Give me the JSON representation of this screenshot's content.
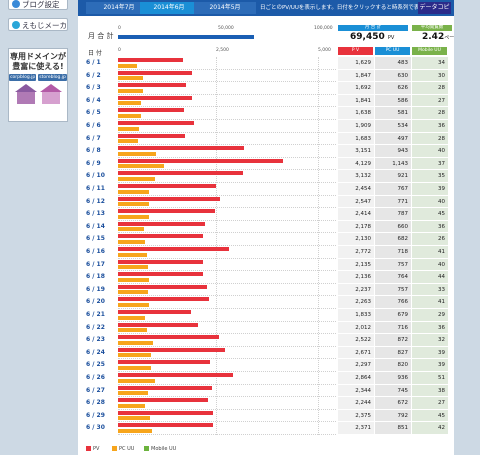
{
  "sidebar": {
    "blog_settings": "ブログ設定",
    "emoji_maker": "えもじメーカー",
    "ad": {
      "line1": "専用ドメインが",
      "line2": "豊富に使える!",
      "domains": [
        "corpblog.jp",
        "storeblog.jp"
      ]
    }
  },
  "tabs": [
    {
      "label": "2014年7月"
    },
    {
      "label": "2014年6月",
      "active": true
    },
    {
      "label": "2014年5月"
    }
  ],
  "tabs_info": "日ごとのPV/UUを表示します。日付をクリックすると時系列で表示します。",
  "copy_button": "データコピー",
  "month_total": {
    "label": "月 合 計",
    "ticks": [
      "0",
      "50,000",
      "100,000"
    ],
    "value_fraction": 0.6945
  },
  "totals": {
    "pv_header": "月 合 計",
    "pv_value": "69,450",
    "pv_unit": "PV",
    "avg_header": "平均閲覧数",
    "avg_value": "2.42",
    "avg_unit": "ページ"
  },
  "columns": {
    "date_label": "日 付",
    "ticks": [
      "0",
      "2,500",
      "5,000"
    ],
    "pv": "P V",
    "pc": "PC UU",
    "mobile": "Mobile UU"
  },
  "colors": {
    "pv": "#e8323c",
    "pc": "#f7a51c",
    "mobile": "#6cb33e",
    "header": "#1c5aa8"
  },
  "legend": {
    "pv": "PV",
    "pc": "PC UU",
    "mobile": "Mobile UU"
  },
  "chart_data": {
    "type": "bar",
    "xlim": [
      0,
      5000
    ],
    "categories": [
      "6 / 1",
      "6 / 2",
      "6 / 3",
      "6 / 4",
      "6 / 5",
      "6 / 6",
      "6 / 7",
      "6 / 8",
      "6 / 9",
      "6 / 10",
      "6 / 11",
      "6 / 12",
      "6 / 13",
      "6 / 14",
      "6 / 15",
      "6 / 16",
      "6 / 17",
      "6 / 18",
      "6 / 19",
      "6 / 20",
      "6 / 21",
      "6 / 22",
      "6 / 23",
      "6 / 24",
      "6 / 25",
      "6 / 26",
      "6 / 27",
      "6 / 28",
      "6 / 29",
      "6 / 30"
    ],
    "series": [
      {
        "name": "PV",
        "values": [
          1629,
          1847,
          1692,
          1841,
          1638,
          1909,
          1683,
          3151,
          4129,
          3132,
          2454,
          2547,
          2414,
          2178,
          2130,
          2772,
          2135,
          2136,
          2237,
          2263,
          1833,
          2012,
          2522,
          2671,
          2297,
          2864,
          2344,
          2244,
          2375,
          2371
        ]
      },
      {
        "name": "PC UU",
        "values": [
          483,
          630,
          626,
          586,
          581,
          534,
          497,
          943,
          1143,
          921,
          767,
          771,
          787,
          660,
          682,
          718,
          757,
          764,
          757,
          766,
          679,
          716,
          872,
          827,
          820,
          936,
          745,
          672,
          792,
          851
        ]
      },
      {
        "name": "Mobile UU",
        "values": [
          34,
          30,
          28,
          27,
          28,
          36,
          28,
          40,
          37,
          35,
          39,
          40,
          45,
          36,
          26,
          41,
          40,
          44,
          33,
          41,
          29,
          36,
          32,
          39,
          39,
          51,
          38,
          27,
          45,
          42
        ]
      }
    ],
    "display_values": {
      "pv": [
        "1,629",
        "1,847",
        "1,692",
        "1,841",
        "1,638",
        "1,909",
        "1,683",
        "3,151",
        "4,129",
        "3,132",
        "2,454",
        "2,547",
        "2,414",
        "2,178",
        "2,130",
        "2,772",
        "2,135",
        "2,136",
        "2,237",
        "2,263",
        "1,833",
        "2,012",
        "2,522",
        "2,671",
        "2,297",
        "2,864",
        "2,344",
        "2,244",
        "2,375",
        "2,371"
      ],
      "pc": [
        "483",
        "630",
        "626",
        "586",
        "581",
        "534",
        "497",
        "943",
        "1,143",
        "921",
        "767",
        "771",
        "787",
        "660",
        "682",
        "718",
        "757",
        "764",
        "757",
        "766",
        "679",
        "716",
        "872",
        "827",
        "820",
        "936",
        "745",
        "672",
        "792",
        "851"
      ],
      "mobile": [
        "34",
        "30",
        "28",
        "27",
        "28",
        "36",
        "28",
        "40",
        "37",
        "35",
        "39",
        "40",
        "45",
        "36",
        "26",
        "41",
        "40",
        "44",
        "33",
        "41",
        "29",
        "36",
        "32",
        "39",
        "39",
        "51",
        "38",
        "27",
        "45",
        "42"
      ]
    }
  }
}
